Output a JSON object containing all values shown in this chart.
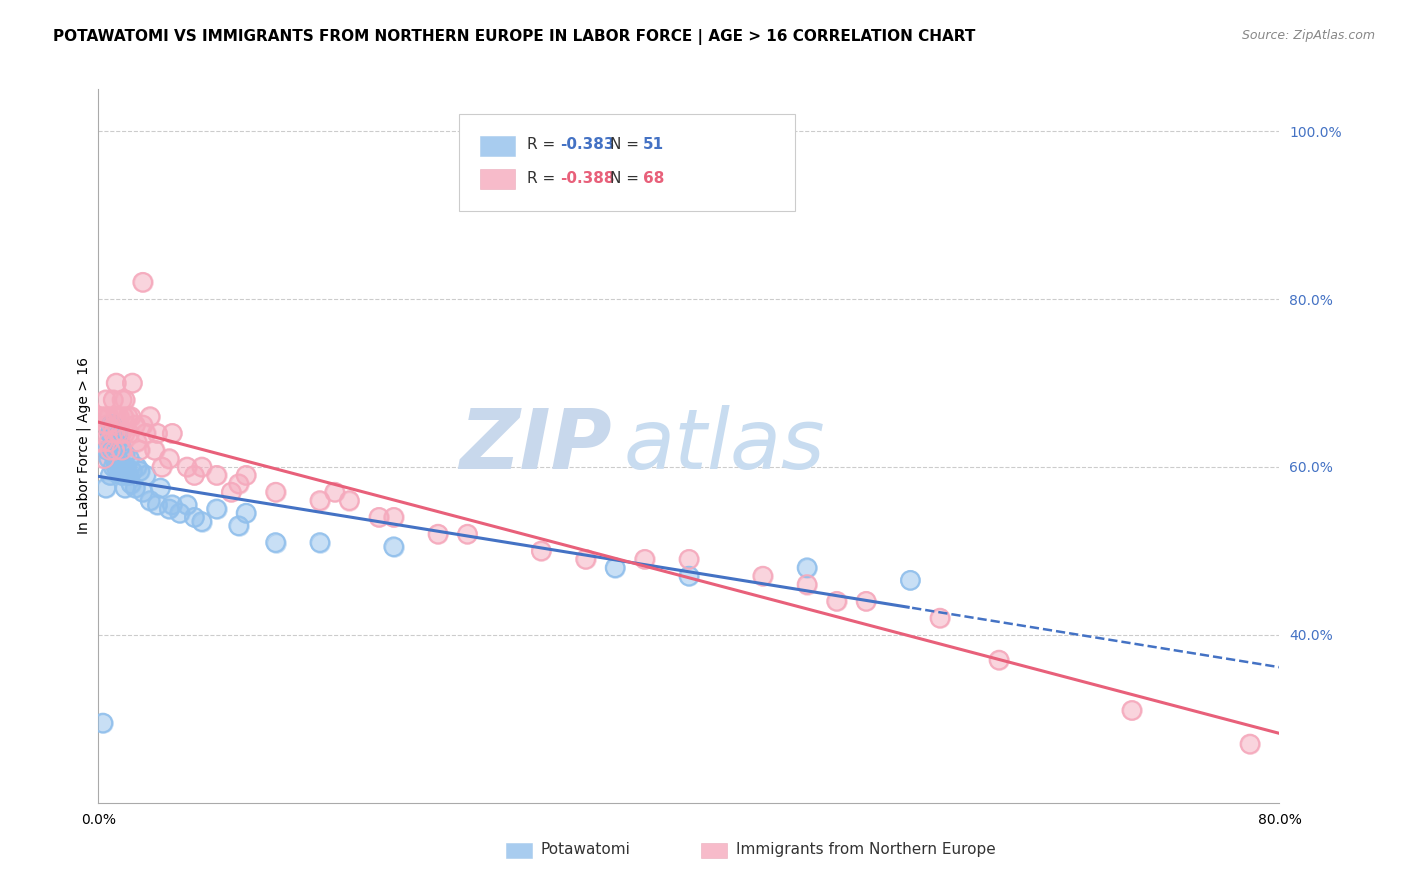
{
  "title": "POTAWATOMI VS IMMIGRANTS FROM NORTHERN EUROPE IN LABOR FORCE | AGE > 16 CORRELATION CHART",
  "source": "Source: ZipAtlas.com",
  "ylabel": "In Labor Force | Age > 16",
  "xlim": [
    0.0,
    0.8
  ],
  "ylim": [
    0.2,
    1.05
  ],
  "yticks_right": [
    0.4,
    0.6,
    0.8,
    1.0
  ],
  "ytick_right_labels": [
    "40.0%",
    "60.0%",
    "80.0%",
    "100.0%"
  ],
  "blue_R": -0.383,
  "blue_N": 51,
  "pink_R": -0.388,
  "pink_N": 68,
  "blue_color": "#92C0EC",
  "pink_color": "#F5AABD",
  "blue_line_color": "#4472C4",
  "pink_line_color": "#E8607A",
  "legend_blue_label": "Potawatomi",
  "legend_pink_label": "Immigrants from Northern Europe",
  "watermark_zip": "ZIP",
  "watermark_atlas": "atlas",
  "background_color": "#FFFFFF",
  "grid_color": "#CCCCCC",
  "axis_color": "#AAAAAA",
  "right_tick_color": "#4472C4",
  "blue_scatter_x": [
    0.003,
    0.005,
    0.006,
    0.007,
    0.008,
    0.008,
    0.009,
    0.009,
    0.01,
    0.01,
    0.011,
    0.012,
    0.012,
    0.013,
    0.013,
    0.014,
    0.015,
    0.015,
    0.016,
    0.017,
    0.018,
    0.018,
    0.019,
    0.02,
    0.021,
    0.022,
    0.023,
    0.025,
    0.026,
    0.028,
    0.03,
    0.032,
    0.035,
    0.04,
    0.042,
    0.048,
    0.05,
    0.055,
    0.06,
    0.065,
    0.07,
    0.08,
    0.095,
    0.1,
    0.12,
    0.15,
    0.2,
    0.35,
    0.4,
    0.48,
    0.55
  ],
  "blue_scatter_y": [
    0.295,
    0.575,
    0.62,
    0.61,
    0.59,
    0.64,
    0.62,
    0.65,
    0.6,
    0.635,
    0.61,
    0.6,
    0.625,
    0.61,
    0.64,
    0.6,
    0.595,
    0.625,
    0.59,
    0.6,
    0.615,
    0.575,
    0.6,
    0.59,
    0.61,
    0.58,
    0.595,
    0.575,
    0.6,
    0.595,
    0.57,
    0.59,
    0.56,
    0.555,
    0.575,
    0.55,
    0.555,
    0.545,
    0.555,
    0.54,
    0.535,
    0.55,
    0.53,
    0.545,
    0.51,
    0.51,
    0.505,
    0.48,
    0.47,
    0.48,
    0.465
  ],
  "pink_scatter_x": [
    0.0,
    0.001,
    0.002,
    0.003,
    0.004,
    0.005,
    0.005,
    0.006,
    0.007,
    0.007,
    0.008,
    0.009,
    0.01,
    0.01,
    0.011,
    0.012,
    0.012,
    0.013,
    0.014,
    0.015,
    0.016,
    0.016,
    0.017,
    0.018,
    0.018,
    0.02,
    0.021,
    0.022,
    0.023,
    0.025,
    0.026,
    0.028,
    0.03,
    0.03,
    0.032,
    0.035,
    0.038,
    0.04,
    0.043,
    0.048,
    0.05,
    0.06,
    0.065,
    0.07,
    0.08,
    0.09,
    0.095,
    0.1,
    0.12,
    0.15,
    0.16,
    0.17,
    0.19,
    0.2,
    0.23,
    0.25,
    0.3,
    0.33,
    0.37,
    0.4,
    0.45,
    0.48,
    0.5,
    0.52,
    0.57,
    0.61,
    0.7,
    0.78
  ],
  "pink_scatter_y": [
    0.66,
    0.64,
    0.66,
    0.63,
    0.61,
    0.66,
    0.68,
    0.65,
    0.63,
    0.66,
    0.62,
    0.65,
    0.64,
    0.68,
    0.62,
    0.66,
    0.7,
    0.64,
    0.66,
    0.64,
    0.68,
    0.62,
    0.66,
    0.64,
    0.68,
    0.66,
    0.64,
    0.66,
    0.7,
    0.65,
    0.63,
    0.62,
    0.65,
    0.82,
    0.64,
    0.66,
    0.62,
    0.64,
    0.6,
    0.61,
    0.64,
    0.6,
    0.59,
    0.6,
    0.59,
    0.57,
    0.58,
    0.59,
    0.57,
    0.56,
    0.57,
    0.56,
    0.54,
    0.54,
    0.52,
    0.52,
    0.5,
    0.49,
    0.49,
    0.49,
    0.47,
    0.46,
    0.44,
    0.44,
    0.42,
    0.37,
    0.31,
    0.27
  ],
  "title_fontsize": 11,
  "source_fontsize": 9,
  "label_fontsize": 10,
  "tick_fontsize": 10,
  "legend_fontsize": 11,
  "watermark_zip_fontsize": 60,
  "watermark_atlas_fontsize": 60,
  "watermark_zip_color": "#C8D8EC",
  "watermark_atlas_color": "#C8DCF0"
}
